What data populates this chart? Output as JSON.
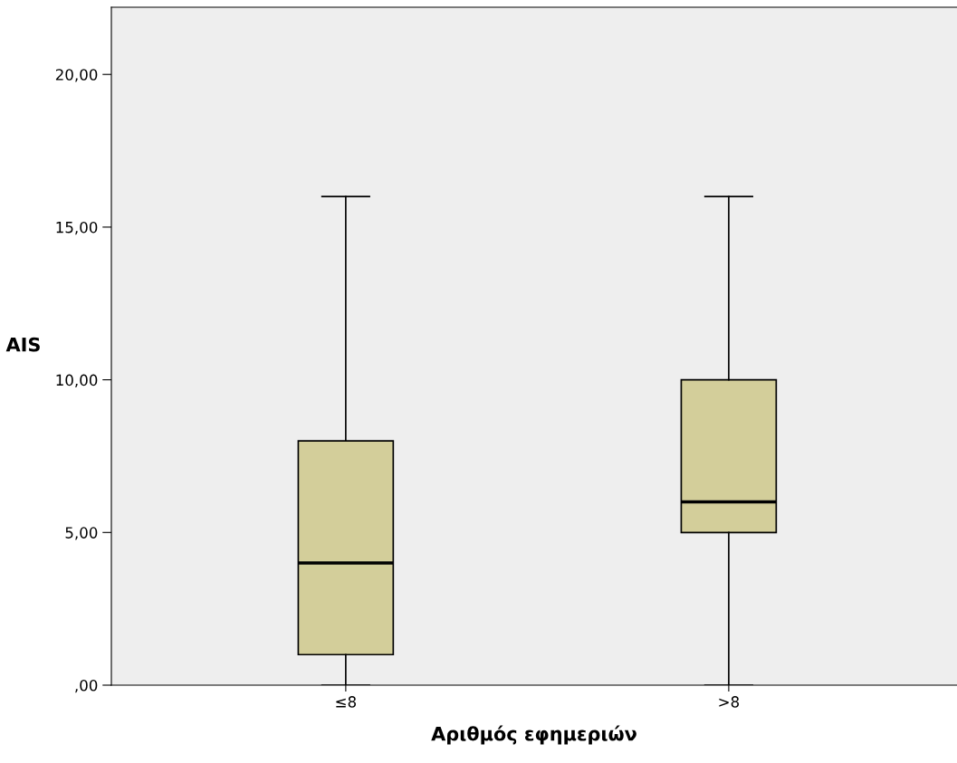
{
  "chart_data": {
    "type": "box",
    "xlabel": "Αριθμός εφημεριών",
    "ylabel": "AIS",
    "categories": [
      "≤8",
      ">8"
    ],
    "boxes": [
      {
        "low": 0,
        "q1": 1,
        "median": 4,
        "q3": 8,
        "high": 16
      },
      {
        "low": 0,
        "q1": 5,
        "median": 6,
        "q3": 10,
        "high": 16
      }
    ],
    "color": "#d3ce9a",
    "ylim": [
      0,
      22.2
    ],
    "yticks": [
      {
        "value": 0,
        "label": ",00"
      },
      {
        "value": 5,
        "label": "5,00"
      },
      {
        "value": 10,
        "label": "10,00"
      },
      {
        "value": 15,
        "label": "15,00"
      },
      {
        "value": 20,
        "label": "20,00"
      }
    ],
    "grid": false
  }
}
